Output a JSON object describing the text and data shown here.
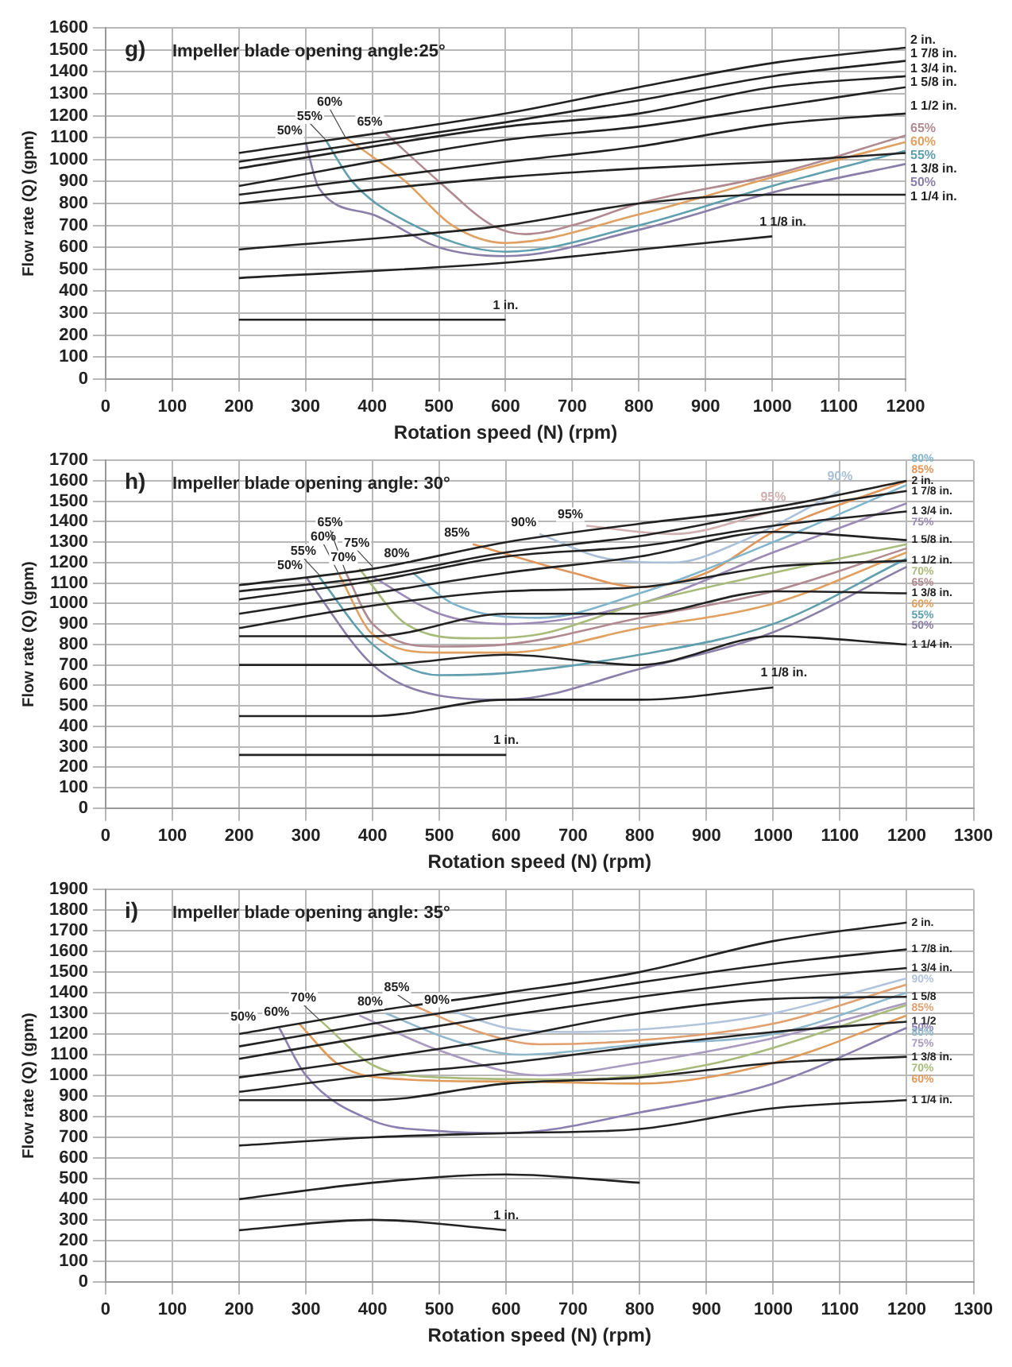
{
  "chart_data": [
    {
      "type": "line",
      "title": "Impeller blade opening angle:25°",
      "xlabel": "Rotation speed (N) (rpm)",
      "ylabel": "Flow rate (Q) (gpm)",
      "xlim": [
        0,
        1200
      ],
      "xticks": [
        0,
        100,
        200,
        300,
        400,
        500,
        600,
        700,
        800,
        900,
        1000,
        1100,
        1200
      ],
      "ylim": [
        0,
        1600
      ],
      "yticks": [
        0,
        100,
        200,
        300,
        400,
        500,
        600,
        700,
        800,
        900,
        1000,
        1100,
        1200,
        1300,
        1400,
        1500,
        1600
      ],
      "grid": true,
      "legend": false,
      "annotations": [
        "g)",
        {
          "text": "50%",
          "x": 300,
          "y": 1080
        },
        {
          "text": "55%",
          "x": 330,
          "y": 1090
        },
        {
          "text": "60%",
          "x": 360,
          "y": 1100
        },
        {
          "text": "65%",
          "x": 420,
          "y": 1120
        }
      ],
      "series": [
        {
          "name": "2 in.",
          "color": "#222222",
          "x": [
            200,
            600,
            800,
            1000,
            1200
          ],
          "values": [
            1030,
            1210,
            1330,
            1440,
            1510
          ]
        },
        {
          "name": "1 7/8 in.",
          "color": "#222222",
          "x": [
            200,
            600,
            800,
            1000,
            1200
          ],
          "values": [
            990,
            1170,
            1270,
            1380,
            1450
          ]
        },
        {
          "name": "1 3/4 in.",
          "color": "#222222",
          "x": [
            200,
            600,
            800,
            1000,
            1200
          ],
          "values": [
            960,
            1150,
            1210,
            1330,
            1380
          ]
        },
        {
          "name": "1 5/8 in.",
          "color": "#222222",
          "x": [
            200,
            600,
            800,
            1000,
            1200
          ],
          "values": [
            880,
            1090,
            1150,
            1240,
            1330
          ]
        },
        {
          "name": "1 1/2 in.",
          "color": "#222222",
          "x": [
            200,
            600,
            800,
            1000,
            1200
          ],
          "values": [
            840,
            990,
            1060,
            1160,
            1210
          ]
        },
        {
          "name": "1 3/8 in.",
          "color": "#222222",
          "x": [
            200,
            600,
            800,
            1000,
            1200
          ],
          "values": [
            800,
            920,
            960,
            990,
            1030
          ]
        },
        {
          "name": "1 1/4 in.",
          "color": "#222222",
          "x": [
            200,
            600,
            800,
            1000,
            1200
          ],
          "values": [
            590,
            700,
            800,
            840,
            840
          ]
        },
        {
          "name": "1 1/8 in.",
          "color": "#222222",
          "x": [
            200,
            600,
            800,
            1000
          ],
          "values": [
            460,
            530,
            590,
            650
          ]
        },
        {
          "name": "1 in.",
          "color": "#222222",
          "x": [
            200,
            600
          ],
          "values": [
            270,
            270
          ]
        },
        {
          "name": "50%",
          "color": "#8a7fa8",
          "x": [
            300,
            320,
            400,
            500,
            600,
            800,
            1000,
            1200
          ],
          "values": [
            1080,
            870,
            750,
            600,
            560,
            680,
            850,
            980
          ]
        },
        {
          "name": "55%",
          "color": "#5f9fae",
          "x": [
            330,
            370,
            450,
            600,
            800,
            1000,
            1200
          ],
          "values": [
            1090,
            900,
            720,
            580,
            700,
            880,
            1040
          ]
        },
        {
          "name": "60%",
          "color": "#e0a060",
          "x": [
            360,
            450,
            520,
            600,
            800,
            1000,
            1200
          ],
          "values": [
            1100,
            900,
            700,
            620,
            750,
            920,
            1080
          ]
        },
        {
          "name": "65%",
          "color": "#b08a90",
          "x": [
            420,
            500,
            580,
            630,
            700,
            800,
            1000,
            1200
          ],
          "values": [
            1120,
            900,
            700,
            660,
            700,
            800,
            930,
            1110
          ]
        }
      ]
    },
    {
      "type": "line",
      "title": "Impeller blade opening angle: 30°",
      "xlabel": "Rotation speed (N) (rpm)",
      "ylabel": "Flow rate (Q) (gpm)",
      "xlim": [
        0,
        1300
      ],
      "xticks": [
        0,
        100,
        200,
        300,
        400,
        500,
        600,
        700,
        800,
        900,
        1000,
        1100,
        1200,
        1300
      ],
      "ylim": [
        0,
        1700
      ],
      "yticks": [
        0,
        100,
        200,
        300,
        400,
        500,
        600,
        700,
        800,
        900,
        1000,
        1100,
        1200,
        1300,
        1400,
        1500,
        1600,
        1700
      ],
      "grid": true,
      "legend": false,
      "annotations": [
        "h)",
        {
          "text": "50%",
          "x": 300,
          "y": 1130
        },
        {
          "text": "55%",
          "x": 320,
          "y": 1140
        },
        {
          "text": "60%",
          "x": 350,
          "y": 1140
        },
        {
          "text": "65%",
          "x": 360,
          "y": 1150
        },
        {
          "text": "70%",
          "x": 380,
          "y": 1170
        },
        {
          "text": "75%",
          "x": 400,
          "y": 1180
        },
        {
          "text": "80%",
          "x": 460,
          "y": 1190
        },
        {
          "text": "85%",
          "x": 550,
          "y": 1290
        },
        {
          "text": "90%",
          "x": 650,
          "y": 1340
        },
        {
          "text": "95%",
          "x": 720,
          "y": 1380
        }
      ],
      "series": [
        {
          "name": "2 in.",
          "color": "#222222",
          "x": [
            200,
            400,
            600,
            800,
            1000,
            1200
          ],
          "values": [
            1090,
            1170,
            1300,
            1390,
            1470,
            1600
          ]
        },
        {
          "name": "1 7/8 in.",
          "color": "#222222",
          "x": [
            200,
            400,
            600,
            800,
            1000,
            1200
          ],
          "values": [
            1060,
            1130,
            1250,
            1330,
            1450,
            1550
          ]
        },
        {
          "name": "1 3/4 in.",
          "color": "#222222",
          "x": [
            200,
            400,
            600,
            800,
            1000,
            1200
          ],
          "values": [
            1020,
            1110,
            1230,
            1280,
            1380,
            1450
          ]
        },
        {
          "name": "1 5/8 in.",
          "color": "#222222",
          "x": [
            200,
            400,
            600,
            800,
            1000,
            1200
          ],
          "values": [
            950,
            1050,
            1150,
            1230,
            1350,
            1310
          ]
        },
        {
          "name": "1 1/2 in.",
          "color": "#222222",
          "x": [
            200,
            400,
            600,
            800,
            1000,
            1200
          ],
          "values": [
            880,
            990,
            1060,
            1080,
            1180,
            1210
          ]
        },
        {
          "name": "1 3/8 in.",
          "color": "#222222",
          "x": [
            200,
            400,
            600,
            800,
            1000,
            1200
          ],
          "values": [
            840,
            840,
            950,
            950,
            1060,
            1050
          ]
        },
        {
          "name": "1 1/4 in.",
          "color": "#222222",
          "x": [
            200,
            400,
            600,
            800,
            1000,
            1200
          ],
          "values": [
            700,
            700,
            750,
            700,
            840,
            800
          ]
        },
        {
          "name": "1 1/8 in.",
          "color": "#222222",
          "x": [
            200,
            400,
            600,
            800,
            1000
          ],
          "values": [
            450,
            450,
            530,
            530,
            590
          ]
        },
        {
          "name": "1 in.",
          "color": "#222222",
          "x": [
            200,
            600
          ],
          "values": [
            260,
            260
          ]
        },
        {
          "name": "50%",
          "color": "#8a7fa8",
          "x": [
            300,
            400,
            500,
            600,
            800,
            1000,
            1200
          ],
          "values": [
            1130,
            700,
            550,
            530,
            680,
            860,
            1180
          ]
        },
        {
          "name": "55%",
          "color": "#5f9fae",
          "x": [
            320,
            400,
            500,
            600,
            800,
            1000,
            1200
          ],
          "values": [
            1130,
            800,
            650,
            660,
            750,
            900,
            1220
          ]
        },
        {
          "name": "60%",
          "color": "#e0a060",
          "x": [
            350,
            400,
            500,
            600,
            800,
            1000,
            1200
          ],
          "values": [
            1140,
            850,
            760,
            760,
            880,
            1000,
            1250
          ]
        },
        {
          "name": "65%",
          "color": "#b08a90",
          "x": [
            360,
            400,
            500,
            600,
            800,
            1000,
            1200
          ],
          "values": [
            1150,
            900,
            790,
            800,
            930,
            1060,
            1270
          ]
        },
        {
          "name": "70%",
          "color": "#a9bb7a",
          "x": [
            380,
            450,
            550,
            650,
            800,
            1000,
            1200
          ],
          "values": [
            1170,
            900,
            830,
            850,
            1000,
            1150,
            1290
          ]
        },
        {
          "name": "75%",
          "color": "#9a8ab5",
          "x": [
            400,
            500,
            600,
            800,
            1000,
            1200
          ],
          "values": [
            1130,
            950,
            900,
            1000,
            1250,
            1490
          ]
        },
        {
          "name": "80%",
          "color": "#7fb5cc",
          "x": [
            460,
            520,
            650,
            800,
            1000,
            1200
          ],
          "values": [
            1150,
            1000,
            930,
            1050,
            1300,
            1580
          ]
        },
        {
          "name": "85%",
          "color": "#e0955a",
          "x": [
            550,
            700,
            800,
            900,
            1000,
            1200
          ],
          "values": [
            1290,
            1150,
            1080,
            1150,
            1350,
            1600
          ]
        },
        {
          "name": "90%",
          "color": "#aac0d8",
          "x": [
            650,
            750,
            850,
            950,
            1100
          ],
          "values": [
            1340,
            1220,
            1200,
            1300,
            1550
          ]
        },
        {
          "name": "95%",
          "color": "#d0b0b0",
          "x": [
            720,
            850,
            1000
          ],
          "values": [
            1380,
            1340,
            1450
          ]
        }
      ]
    },
    {
      "type": "line",
      "title": "Impeller blade opening angle: 35°",
      "xlabel": "Rotation speed (N) (rpm)",
      "ylabel": "Flow rate (Q) (gpm)",
      "xlim": [
        0,
        1300
      ],
      "xticks": [
        0,
        100,
        200,
        300,
        400,
        500,
        600,
        700,
        800,
        900,
        1000,
        1100,
        1200,
        1300
      ],
      "ylim": [
        0,
        1900
      ],
      "yticks": [
        0,
        100,
        200,
        300,
        400,
        500,
        600,
        700,
        800,
        900,
        1000,
        1100,
        1200,
        1300,
        1400,
        1500,
        1600,
        1700,
        1800,
        1900
      ],
      "grid": true,
      "legend": false,
      "annotations": [
        "i)",
        {
          "text": "50%",
          "x": 230,
          "y": 1230
        },
        {
          "text": "60%",
          "x": 280,
          "y": 1250
        },
        {
          "text": "70%",
          "x": 320,
          "y": 1270
        },
        {
          "text": "80%",
          "x": 420,
          "y": 1300
        },
        {
          "text": "85%",
          "x": 460,
          "y": 1340
        },
        {
          "text": "90%",
          "x": 520,
          "y": 1310
        }
      ],
      "series": [
        {
          "name": "2 in.",
          "color": "#222222",
          "x": [
            200,
            400,
            600,
            800,
            1000,
            1200
          ],
          "values": [
            1200,
            1310,
            1400,
            1500,
            1650,
            1740
          ]
        },
        {
          "name": "1 7/8 in.",
          "color": "#222222",
          "x": [
            200,
            400,
            600,
            800,
            1000,
            1200
          ],
          "values": [
            1140,
            1250,
            1350,
            1450,
            1540,
            1610
          ]
        },
        {
          "name": "1 3/4 in.",
          "color": "#222222",
          "x": [
            200,
            400,
            600,
            800,
            1000,
            1200
          ],
          "values": [
            1080,
            1190,
            1290,
            1380,
            1460,
            1520
          ]
        },
        {
          "name": "1 5/8",
          "color": "#222222",
          "x": [
            200,
            400,
            600,
            800,
            1000,
            1200
          ],
          "values": [
            990,
            1080,
            1180,
            1300,
            1370,
            1380
          ]
        },
        {
          "name": "1 1/2",
          "color": "#222222",
          "x": [
            200,
            400,
            600,
            800,
            1000,
            1200
          ],
          "values": [
            920,
            1000,
            1060,
            1140,
            1210,
            1260
          ]
        },
        {
          "name": "1 3/8 in.",
          "color": "#222222",
          "x": [
            200,
            400,
            600,
            800,
            1000,
            1200
          ],
          "values": [
            880,
            880,
            960,
            990,
            1060,
            1090
          ]
        },
        {
          "name": "1 1/4 in.",
          "color": "#222222",
          "x": [
            200,
            400,
            600,
            800,
            1000,
            1200
          ],
          "values": [
            660,
            700,
            720,
            740,
            840,
            880
          ]
        },
        {
          "color": "#222222",
          "x": [
            200,
            400,
            600,
            800
          ],
          "values": [
            400,
            480,
            520,
            480
          ]
        },
        {
          "name": "1 in.",
          "color": "#222222",
          "x": [
            200,
            400,
            600
          ],
          "values": [
            250,
            300,
            250
          ]
        },
        {
          "name": "50%",
          "color": "#8a7fb0",
          "x": [
            260,
            300,
            400,
            500,
            600,
            800,
            1000,
            1200
          ],
          "values": [
            1230,
            1000,
            780,
            730,
            720,
            820,
            960,
            1230
          ]
        },
        {
          "name": "60%",
          "color": "#e09a5a",
          "x": [
            290,
            350,
            450,
            600,
            800,
            1000,
            1200
          ],
          "values": [
            1250,
            1050,
            980,
            970,
            960,
            1060,
            1290
          ]
        },
        {
          "name": "70%",
          "color": "#a9bb7a",
          "x": [
            320,
            400,
            500,
            700,
            900,
            1200
          ],
          "values": [
            1270,
            1050,
            990,
            980,
            1050,
            1340
          ]
        },
        {
          "name": "75%",
          "color": "#a99ac0",
          "x": [
            380,
            500,
            650,
            800,
            1000,
            1200
          ],
          "values": [
            1290,
            1120,
            1000,
            1060,
            1180,
            1350
          ]
        },
        {
          "name": "80%",
          "color": "#8fb8cc",
          "x": [
            420,
            520,
            620,
            800,
            1000,
            1200
          ],
          "values": [
            1300,
            1170,
            1100,
            1150,
            1200,
            1400
          ]
        },
        {
          "name": "85%",
          "color": "#e0a070",
          "x": [
            460,
            550,
            650,
            800,
            1000,
            1200
          ],
          "values": [
            1340,
            1220,
            1150,
            1170,
            1250,
            1440
          ]
        },
        {
          "name": "90%",
          "color": "#b0c4dc",
          "x": [
            520,
            600,
            700,
            900,
            1000,
            1200
          ],
          "values": [
            1310,
            1230,
            1210,
            1250,
            1300,
            1470
          ]
        }
      ]
    }
  ]
}
